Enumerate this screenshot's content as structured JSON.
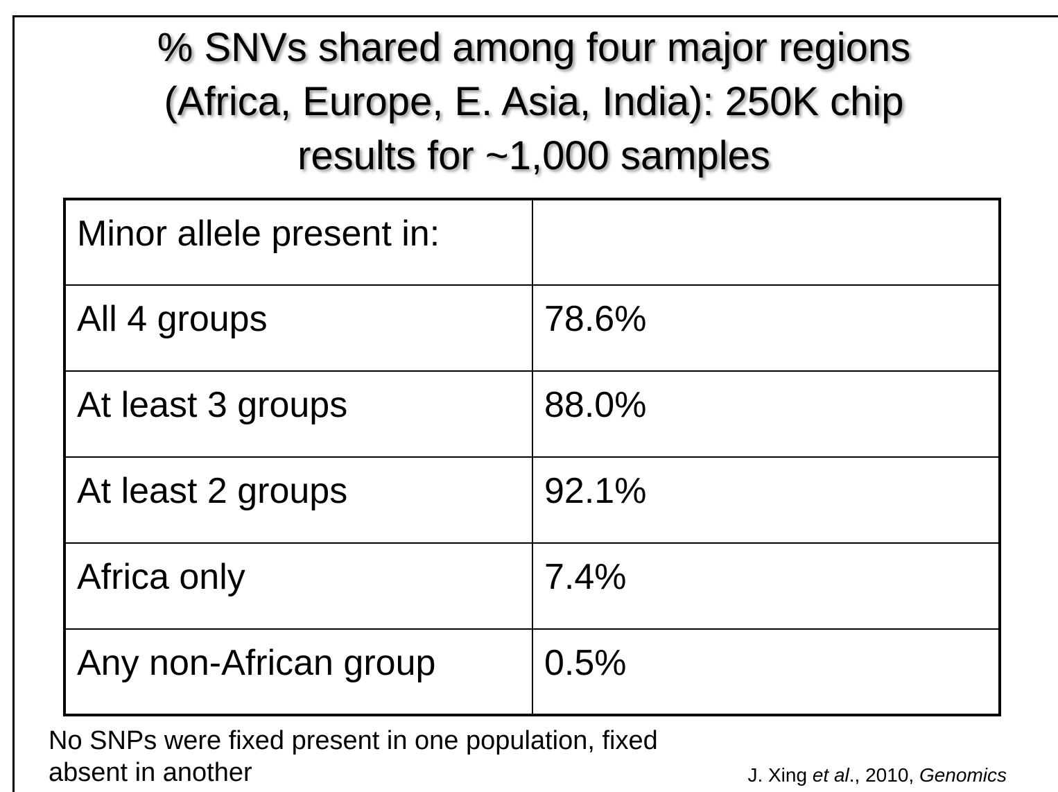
{
  "title": {
    "lines": [
      "% SNVs shared among four major regions",
      "(Africa, Europe, E. Asia, India): 250K chip",
      "results for ~1,000 samples"
    ]
  },
  "table": {
    "header": [
      "Minor allele present in:"
    ],
    "rows": [
      [
        "All 4 groups",
        "78.6%"
      ],
      [
        "At least 3 groups",
        "88.0%"
      ],
      [
        "At least 2 groups",
        "92.1%"
      ],
      [
        "Africa only",
        "7.4%"
      ],
      [
        "Any non-African group",
        "0.5%"
      ]
    ]
  },
  "footnote": {
    "lines": [
      "No SNPs were fixed present in one population, fixed",
      "absent in another"
    ]
  },
  "citation": {
    "parts": [
      "J. Xing ",
      "et al",
      "., 2010, ",
      "Genomics"
    ]
  }
}
